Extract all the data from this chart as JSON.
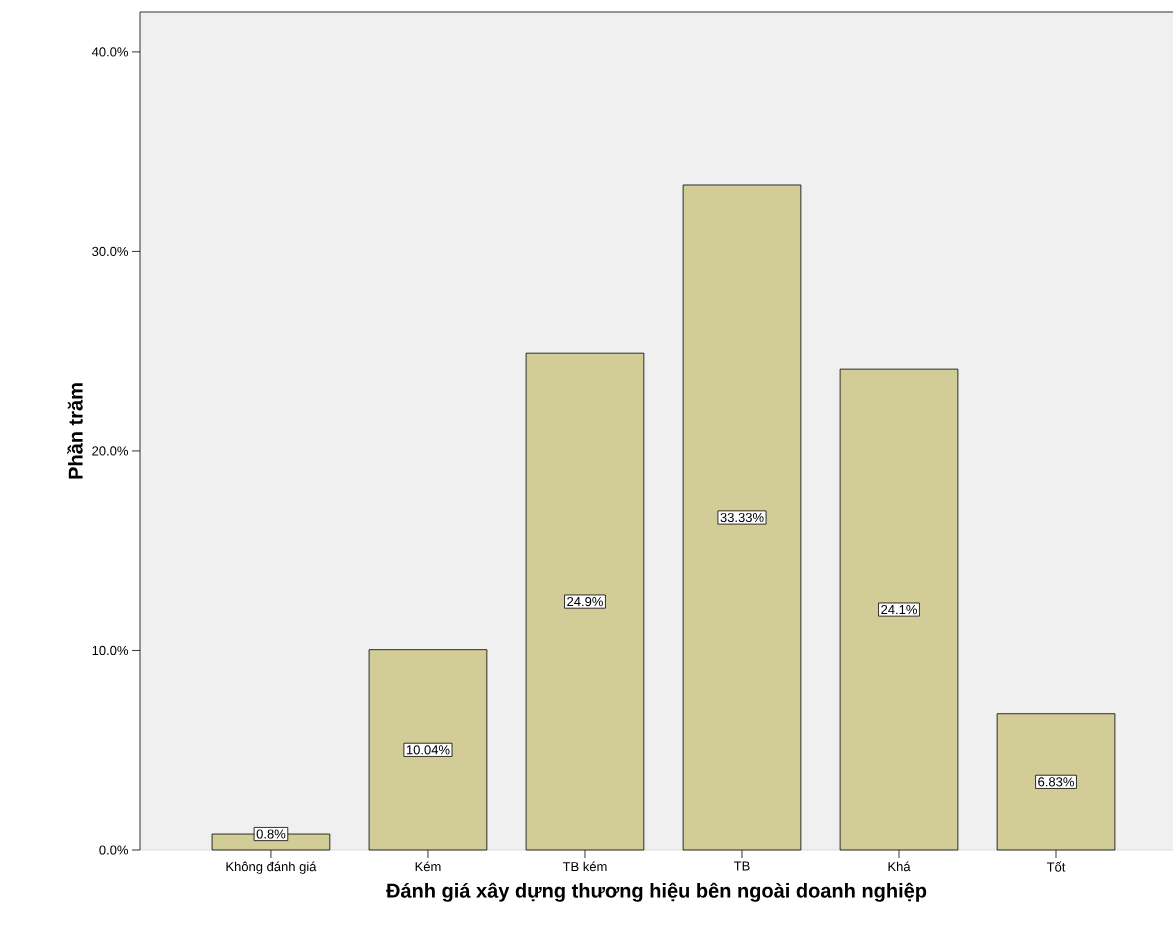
{
  "chart_data": {
    "type": "bar",
    "xlabel": "Đánh giá xây dựng thương hiệu bên ngoài doanh nghiệp",
    "ylabel": "Phần trăm",
    "categories": [
      "Không đánh giá",
      "Kém",
      "TB kém",
      "TB",
      "Khá",
      "Tốt"
    ],
    "values": [
      0.8,
      10.04,
      24.9,
      33.33,
      24.1,
      6.83
    ],
    "value_labels": [
      "0.8%",
      "10.04%",
      "24.9%",
      "33.33%",
      "24.1%",
      "6.83%"
    ],
    "color": "#d2cd96",
    "ylim": [
      0,
      42
    ],
    "yticks": [
      {
        "value": 0,
        "label": "0.0%"
      },
      {
        "value": 10,
        "label": "10.0%"
      },
      {
        "value": 20,
        "label": "20.0%"
      },
      {
        "value": 30,
        "label": "30.0%"
      },
      {
        "value": 40,
        "label": "40.0%"
      }
    ],
    "grid": false
  }
}
